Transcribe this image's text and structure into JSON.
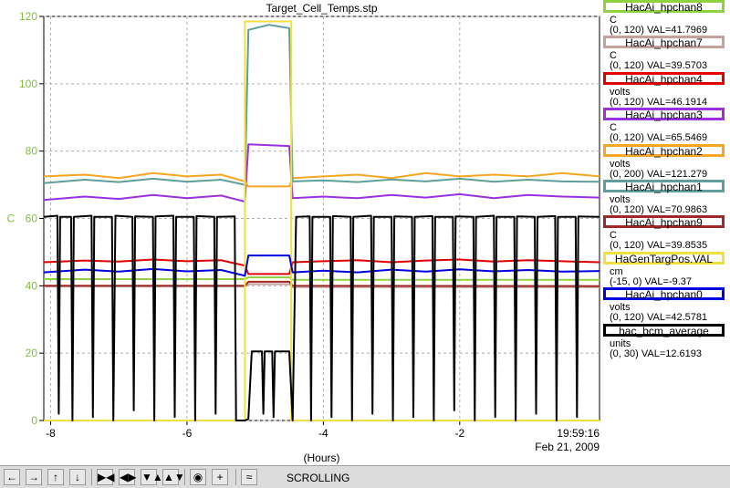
{
  "chart_data": {
    "type": "line",
    "title": "Target_Cell_Temps.stp",
    "xlabel": "(Hours)",
    "ylabel": "C",
    "xlim": [
      -8.1,
      0.05
    ],
    "ylim": [
      0,
      120
    ],
    "x_ticks": [
      -8,
      -6,
      -4,
      -2
    ],
    "y_ticks": [
      0,
      20,
      40,
      60,
      80,
      100,
      120
    ],
    "x_end_label": "19:59:16",
    "date_label": "Feb 21, 2009",
    "grid": true,
    "legend_position": "right",
    "series": [
      {
        "name": "HacAi_hpchan8",
        "units": "C",
        "range": "(0, 120)",
        "val": "VAL=41.7969",
        "color": "#8fd13f",
        "points": [
          [
            -8.1,
            42
          ],
          [
            -5.15,
            42
          ],
          [
            -5.1,
            42.5
          ],
          [
            -4.5,
            42.5
          ],
          [
            -4.45,
            41.8
          ],
          [
            0.05,
            41.8
          ]
        ]
      },
      {
        "name": "HacAi_hpchan7",
        "units": "C",
        "range": "(0, 120)",
        "val": "VAL=39.5703",
        "color": "#c4a29c",
        "points": [
          [
            -8.1,
            39.8
          ],
          [
            -5.15,
            39.8
          ],
          [
            -5.1,
            40.5
          ],
          [
            -4.5,
            40.5
          ],
          [
            -4.45,
            39.6
          ],
          [
            0.05,
            39.6
          ]
        ]
      },
      {
        "name": "HacAi_hpchan4",
        "units": "volts",
        "range": "(0, 120)",
        "val": "VAL=46.1914",
        "color": "#e00000",
        "points": [
          [
            -8.1,
            47
          ],
          [
            -7.5,
            47.5
          ],
          [
            -7,
            47.2
          ],
          [
            -6.5,
            47.8
          ],
          [
            -6,
            47.3
          ],
          [
            -5.5,
            47.6
          ],
          [
            -5.15,
            46
          ],
          [
            -5.1,
            43.5
          ],
          [
            -4.5,
            43.5
          ],
          [
            -4.45,
            47
          ],
          [
            -4,
            47.3
          ],
          [
            -3.5,
            47.6
          ],
          [
            -3,
            47
          ],
          [
            -2.5,
            47.5
          ],
          [
            -2,
            47.8
          ],
          [
            -1.5,
            47.2
          ],
          [
            -1,
            47.6
          ],
          [
            -0.5,
            47.3
          ],
          [
            0.05,
            47
          ]
        ]
      },
      {
        "name": "HacAi_hpchan3",
        "units": "C",
        "range": "(0, 120)",
        "val": "VAL=65.5469",
        "color": "#9b30e0",
        "points": [
          [
            -8.1,
            65.5
          ],
          [
            -7.5,
            66.5
          ],
          [
            -7,
            65.8
          ],
          [
            -6.5,
            67
          ],
          [
            -6,
            66
          ],
          [
            -5.5,
            66.8
          ],
          [
            -5.15,
            65
          ],
          [
            -5.1,
            82
          ],
          [
            -4.5,
            81.5
          ],
          [
            -4.45,
            66
          ],
          [
            -4,
            66.5
          ],
          [
            -3.5,
            66
          ],
          [
            -3,
            67
          ],
          [
            -2.5,
            66.2
          ],
          [
            -2,
            67.2
          ],
          [
            -1.5,
            66
          ],
          [
            -1,
            67
          ],
          [
            -0.5,
            66.5
          ],
          [
            0.05,
            66.2
          ]
        ]
      },
      {
        "name": "HacAi_hpchan2",
        "units": "volts",
        "range": "(0, 200)",
        "val": "VAL=121.279",
        "color": "#f5a623",
        "points": [
          [
            -8.1,
            72.5
          ],
          [
            -7.5,
            73
          ],
          [
            -7,
            72
          ],
          [
            -6.5,
            73.5
          ],
          [
            -6,
            72.5
          ],
          [
            -5.5,
            73
          ],
          [
            -5.15,
            71
          ],
          [
            -5.1,
            69.5
          ],
          [
            -4.5,
            69.5
          ],
          [
            -4.45,
            72
          ],
          [
            -4,
            72.5
          ],
          [
            -3.5,
            73
          ],
          [
            -3,
            72
          ],
          [
            -2.5,
            73.5
          ],
          [
            -2,
            72.5
          ],
          [
            -1.5,
            73
          ],
          [
            -1,
            72.5
          ],
          [
            -0.5,
            73.5
          ],
          [
            0.05,
            72.5
          ]
        ]
      },
      {
        "name": "HacAi_hpchan1",
        "units": "volts",
        "range": "(0, 120)",
        "val": "VAL=70.9863",
        "color": "#5f9e9a",
        "points": [
          [
            -8.1,
            70.5
          ],
          [
            -7.5,
            71.5
          ],
          [
            -7,
            70.8
          ],
          [
            -6.5,
            71.8
          ],
          [
            -6,
            70.9
          ],
          [
            -5.5,
            71.5
          ],
          [
            -5.15,
            70
          ],
          [
            -5.1,
            116
          ],
          [
            -4.8,
            117.5
          ],
          [
            -4.5,
            116.5
          ],
          [
            -4.45,
            71
          ],
          [
            -4,
            71.3
          ],
          [
            -3.5,
            70.8
          ],
          [
            -3,
            71.6
          ],
          [
            -2.5,
            71
          ],
          [
            -2,
            71.8
          ],
          [
            -1.5,
            70.9
          ],
          [
            -1,
            71.5
          ],
          [
            -0.5,
            71
          ],
          [
            0.05,
            70.9
          ]
        ]
      },
      {
        "name": "HacAi_hpchan9",
        "units": "C",
        "range": "(0, 120)",
        "val": "VAL=39.8535",
        "color": "#a02828",
        "points": [
          [
            -8.1,
            40
          ],
          [
            -5.15,
            40
          ],
          [
            -5.1,
            41.2
          ],
          [
            -4.5,
            41.2
          ],
          [
            -4.45,
            40
          ],
          [
            0.05,
            39.9
          ]
        ]
      },
      {
        "name": "HaGenTargPos.VAL",
        "units": "cm",
        "range": "(-15, 0)",
        "val": "VAL=-9.37",
        "color": "#f0e040",
        "points": [
          [
            -8.1,
            0
          ],
          [
            -5.15,
            0
          ],
          [
            -5.15,
            118.5
          ],
          [
            -4.47,
            118.5
          ],
          [
            -4.47,
            0
          ],
          [
            0.05,
            0
          ]
        ]
      },
      {
        "name": "HacAi_hpchan0",
        "units": "volts",
        "range": "(0, 120)",
        "val": "VAL=42.5781",
        "color": "#0000e0",
        "points": [
          [
            -8.1,
            44
          ],
          [
            -7.5,
            44.8
          ],
          [
            -7,
            44.2
          ],
          [
            -6.5,
            45
          ],
          [
            -6,
            44.3
          ],
          [
            -5.5,
            44.7
          ],
          [
            -5.15,
            43
          ],
          [
            -5.1,
            49
          ],
          [
            -4.5,
            49
          ],
          [
            -4.45,
            44
          ],
          [
            -4,
            44.5
          ],
          [
            -3.5,
            44
          ],
          [
            -3,
            44.8
          ],
          [
            -2.5,
            44.2
          ],
          [
            -2,
            44.9
          ],
          [
            -1.5,
            44.3
          ],
          [
            -1,
            44.7
          ],
          [
            -0.5,
            44.2
          ],
          [
            0.05,
            44.4
          ]
        ]
      },
      {
        "name": "hac_bcm_average",
        "units": "units",
        "range": "(0, 30)",
        "val": "VAL=12.6193",
        "color": "#000000",
        "points": [
          [
            -8.1,
            60.5
          ],
          [
            -7.9,
            60.8
          ],
          [
            -7.88,
            2
          ],
          [
            -7.86,
            60.5
          ],
          [
            -7.7,
            60.5
          ],
          [
            -7.68,
            0
          ],
          [
            -7.66,
            60.5
          ],
          [
            -7.4,
            60.8
          ],
          [
            -7.38,
            1
          ],
          [
            -7.36,
            60.5
          ],
          [
            -7.1,
            60.5
          ],
          [
            -7.08,
            0
          ],
          [
            -7.05,
            60.8
          ],
          [
            -6.8,
            60.5
          ],
          [
            -6.78,
            3
          ],
          [
            -6.76,
            60.6
          ],
          [
            -6.5,
            60.5
          ],
          [
            -6.48,
            0
          ],
          [
            -6.46,
            60.6
          ],
          [
            -6.2,
            60.8
          ],
          [
            -6.18,
            1
          ],
          [
            -6.16,
            60.5
          ],
          [
            -5.9,
            60.5
          ],
          [
            -5.88,
            0
          ],
          [
            -5.86,
            60.7
          ],
          [
            -5.6,
            60.5
          ],
          [
            -5.58,
            2
          ],
          [
            -5.56,
            60.5
          ],
          [
            -5.3,
            60.6
          ],
          [
            -5.28,
            0
          ],
          [
            -5.2,
            0
          ],
          [
            -5.18,
            0
          ],
          [
            -5.15,
            0
          ],
          [
            -5.1,
            0.5
          ],
          [
            -5.05,
            20.5
          ],
          [
            -4.9,
            20.5
          ],
          [
            -4.88,
            2
          ],
          [
            -4.86,
            20.5
          ],
          [
            -4.75,
            20.5
          ],
          [
            -4.73,
            1
          ],
          [
            -4.71,
            20.5
          ],
          [
            -4.5,
            20.5
          ],
          [
            -4.45,
            0
          ],
          [
            -4.4,
            60.5
          ],
          [
            -4.2,
            60.6
          ],
          [
            -4.18,
            0
          ],
          [
            -4.16,
            60.5
          ],
          [
            -3.9,
            60.5
          ],
          [
            -3.88,
            1
          ],
          [
            -3.86,
            60.7
          ],
          [
            -3.6,
            60.5
          ],
          [
            -3.58,
            0
          ],
          [
            -3.56,
            60.5
          ],
          [
            -3.3,
            60.8
          ],
          [
            -3.28,
            2
          ],
          [
            -3.26,
            60.5
          ],
          [
            -3,
            60.5
          ],
          [
            -2.98,
            0
          ],
          [
            -2.96,
            60.6
          ],
          [
            -2.7,
            60.5
          ],
          [
            -2.68,
            1
          ],
          [
            -2.66,
            60.5
          ],
          [
            -2.4,
            60.7
          ],
          [
            -2.38,
            0
          ],
          [
            -2.36,
            60.5
          ],
          [
            -2.1,
            60.5
          ],
          [
            -2.08,
            3
          ],
          [
            -2.06,
            60.6
          ],
          [
            -1.8,
            60.5
          ],
          [
            -1.78,
            0
          ],
          [
            -1.76,
            60.5
          ],
          [
            -1.5,
            60.8
          ],
          [
            -1.48,
            1
          ],
          [
            -1.46,
            60.5
          ],
          [
            -1.2,
            60.5
          ],
          [
            -1.18,
            0
          ],
          [
            -1.16,
            60.6
          ],
          [
            -0.9,
            60.5
          ],
          [
            -0.88,
            2
          ],
          [
            -0.86,
            60.5
          ],
          [
            -0.6,
            60.7
          ],
          [
            -0.58,
            0
          ],
          [
            -0.56,
            60.5
          ],
          [
            -0.3,
            60.5
          ],
          [
            -0.28,
            1
          ],
          [
            -0.26,
            60.6
          ],
          [
            0.05,
            60.5
          ]
        ]
      }
    ]
  },
  "toolbar": {
    "buttons": [
      {
        "name": "scroll-left-button",
        "glyph": "←"
      },
      {
        "name": "scroll-right-button",
        "glyph": "→"
      },
      {
        "name": "scroll-up-button",
        "glyph": "↑"
      },
      {
        "name": "scroll-down-button",
        "glyph": "↓"
      },
      {
        "name": "compress-horizontal-button",
        "glyph": "▶◀"
      },
      {
        "name": "expand-horizontal-button",
        "glyph": "◀▶"
      },
      {
        "name": "compress-vertical-button",
        "glyph": "▼▲"
      },
      {
        "name": "expand-vertical-button",
        "glyph": "▲▼"
      },
      {
        "name": "config-button",
        "glyph": "◉"
      },
      {
        "name": "add-button",
        "glyph": "+"
      },
      {
        "name": "scroll-mode-button",
        "glyph": "≈"
      }
    ],
    "mode_label": "SCROLLING"
  }
}
